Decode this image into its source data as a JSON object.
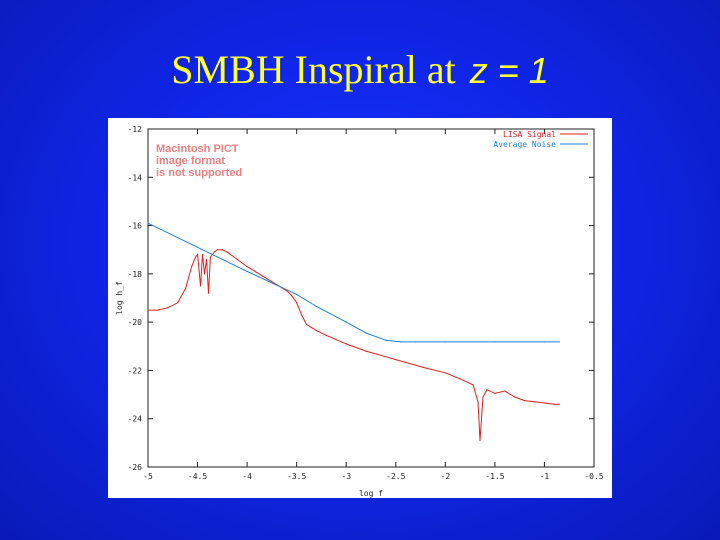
{
  "title": {
    "main": "SMBH Inspiral at",
    "variable": "z = 1"
  },
  "placeholder_notice": [
    "Macintosh PICT",
    "image format",
    "is not supported"
  ],
  "colors": {
    "signal": "#e02020",
    "noise": "#1e7fd0",
    "title": "#ffff33"
  },
  "chart_data": {
    "type": "line",
    "xlabel": "log f",
    "ylabel": "log h_f",
    "xlim": [
      -5,
      -0.5
    ],
    "ylim": [
      -26,
      -12
    ],
    "x_ticks": [
      "-5",
      "-4.5",
      "-4",
      "-3.5",
      "-3",
      "-2.5",
      "-2",
      "-1.5",
      "-1",
      "-0.5"
    ],
    "y_ticks": [
      "-12",
      "-14",
      "-16",
      "-18",
      "-20",
      "-22",
      "-24",
      "-26"
    ],
    "legend_position": "top-right",
    "series": [
      {
        "name": "LISA Signal",
        "color": "#e02020",
        "x": [
          -5,
          -4.9,
          -4.8,
          -4.7,
          -4.62,
          -4.56,
          -4.52,
          -4.5,
          -4.47,
          -4.45,
          -4.43,
          -4.41,
          -4.39,
          -4.37,
          -4.35,
          -4.33,
          -4.3,
          -4.25,
          -4.2,
          -4.1,
          -4.0,
          -3.9,
          -3.8,
          -3.7,
          -3.6,
          -3.55,
          -3.5,
          -3.45,
          -3.4,
          -3.3,
          -3.2,
          -3.0,
          -2.8,
          -2.5,
          -2.2,
          -2.0,
          -1.85,
          -1.72,
          -1.67,
          -1.65,
          -1.62,
          -1.58,
          -1.5,
          -1.4,
          -1.3,
          -1.2,
          -1.1,
          -1.0,
          -0.9,
          -0.85
        ],
        "y": [
          -19.5,
          -19.5,
          -19.4,
          -19.2,
          -18.6,
          -17.7,
          -17.3,
          -17.2,
          -18.5,
          -17.2,
          -18.0,
          -17.4,
          -18.8,
          -17.3,
          -17.2,
          -17.1,
          -17.0,
          -17.0,
          -17.1,
          -17.4,
          -17.7,
          -17.95,
          -18.2,
          -18.45,
          -18.7,
          -18.9,
          -19.2,
          -19.7,
          -20.1,
          -20.35,
          -20.55,
          -20.9,
          -21.2,
          -21.55,
          -21.9,
          -22.1,
          -22.35,
          -22.6,
          -23.3,
          -24.9,
          -23.1,
          -22.8,
          -22.95,
          -22.85,
          -23.1,
          -23.25,
          -23.3,
          -23.35,
          -23.4,
          -23.4
        ]
      },
      {
        "name": "Average Noise",
        "color": "#1e7fd0",
        "x": [
          -5,
          -4.5,
          -4.0,
          -3.5,
          -3.3,
          -3.0,
          -2.8,
          -2.6,
          -2.45,
          -2.3,
          -2.0,
          -1.5,
          -1.0,
          -0.85
        ],
        "y": [
          -15.9,
          -16.9,
          -17.9,
          -18.85,
          -19.35,
          -20.0,
          -20.45,
          -20.75,
          -20.82,
          -20.82,
          -20.82,
          -20.82,
          -20.82,
          -20.82
        ]
      }
    ]
  }
}
